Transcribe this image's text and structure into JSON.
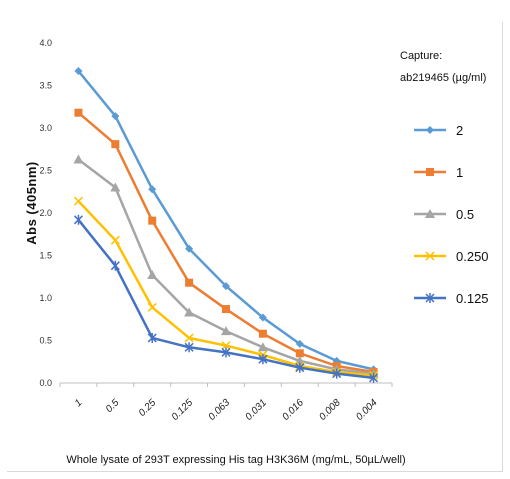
{
  "chart_data": {
    "type": "line",
    "title": "",
    "xlabel": "Whole lysate of 293T expressing His tag  H3K36M (mg/mL, 50µL/well)",
    "ylabel": "Abs (405nm)",
    "ylim": [
      0,
      4.0
    ],
    "yticks": [
      "0.0",
      "0.5",
      "1.0",
      "1.5",
      "2.0",
      "2.5",
      "3.0",
      "3.5",
      "4.0"
    ],
    "categories": [
      "1",
      "0.5",
      "0.25",
      "0.125",
      "0.063",
      "0.031",
      "0.016",
      "0.008",
      "0.004"
    ],
    "grid": false,
    "legend_placement": "right",
    "legend_title": [
      "Capture:",
      "ab219465 (µg/ml)"
    ],
    "series": [
      {
        "name": "2",
        "color": "#5b9bd5",
        "marker": "diamond",
        "values": [
          3.67,
          3.14,
          2.28,
          1.58,
          1.14,
          0.77,
          0.46,
          0.26,
          0.16
        ]
      },
      {
        "name": "1",
        "color": "#ed7d31",
        "marker": "square",
        "values": [
          3.18,
          2.81,
          1.91,
          1.18,
          0.87,
          0.58,
          0.35,
          0.2,
          0.13
        ]
      },
      {
        "name": "0.5",
        "color": "#a5a5a5",
        "marker": "triangle",
        "values": [
          2.63,
          2.3,
          1.27,
          0.83,
          0.61,
          0.42,
          0.26,
          0.16,
          0.11
        ]
      },
      {
        "name": "0.250",
        "color": "#ffc000",
        "marker": "cross",
        "values": [
          2.14,
          1.68,
          0.89,
          0.53,
          0.44,
          0.33,
          0.2,
          0.13,
          0.09
        ]
      },
      {
        "name": "0.125",
        "color": "#4472c4",
        "marker": "star",
        "values": [
          1.92,
          1.38,
          0.53,
          0.42,
          0.36,
          0.28,
          0.18,
          0.11,
          0.06
        ]
      }
    ]
  }
}
